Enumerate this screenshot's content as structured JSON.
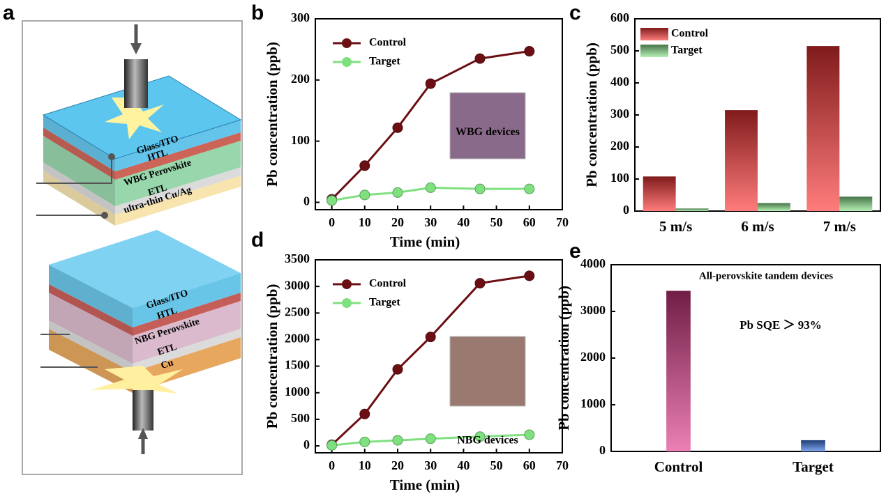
{
  "panel_labels": [
    "a",
    "b",
    "c",
    "d",
    "e"
  ],
  "diagram": {
    "top_layers": [
      "Glass/ITO",
      "HTL",
      "WBG Perovskite",
      "ETL",
      "ultra-thin Cu/Ag"
    ],
    "bottom_layers": [
      "Glass/ITO",
      "HTL",
      "NBG Perovskite",
      "ETL",
      "Cu"
    ]
  },
  "chart_data": [
    {
      "type": "line",
      "xlabel": "Time (min)",
      "ylabel": "Pb concentration (ppb)",
      "x": [
        0,
        10,
        20,
        30,
        45,
        60
      ],
      "series": [
        {
          "name": "Control",
          "color": "#6b0f14",
          "values": [
            5,
            60,
            122,
            194,
            235,
            247
          ]
        },
        {
          "name": "Target",
          "color": "#7fe07f",
          "values": [
            3,
            12,
            16,
            24,
            22,
            22
          ]
        }
      ],
      "xlim": [
        -5,
        70
      ],
      "xticks": [
        0,
        10,
        20,
        30,
        40,
        50,
        60,
        70
      ],
      "ylim": [
        -12,
        300
      ],
      "yticks": [
        0,
        100,
        200,
        300
      ],
      "annotation": "WBG devices",
      "annotation_color": "#1f7ac8",
      "legend": "top-left"
    },
    {
      "type": "bar",
      "ylabel": "Pb concentration (ppb)",
      "categories": [
        "5 m/s",
        "6 m/s",
        "7 m/s"
      ],
      "series": [
        {
          "name": "Control",
          "color": "#ff3535",
          "values": [
            108,
            315,
            515
          ]
        },
        {
          "name": "Target",
          "color": "#8ee88e",
          "values": [
            8,
            25,
            45
          ]
        }
      ],
      "ylim": [
        0,
        600
      ],
      "yticks": [
        0,
        100,
        200,
        300,
        400,
        500,
        600
      ],
      "legend": "top-left"
    },
    {
      "type": "line",
      "xlabel": "Time (min)",
      "ylabel": "Pb concentration (ppb)",
      "x": [
        0,
        10,
        20,
        30,
        45,
        60
      ],
      "series": [
        {
          "name": "Control",
          "color": "#6b0f14",
          "values": [
            20,
            600,
            1440,
            2050,
            3060,
            3200
          ]
        },
        {
          "name": "Target",
          "color": "#7fe07f",
          "values": [
            10,
            75,
            105,
            135,
            175,
            210
          ]
        }
      ],
      "xlim": [
        -5,
        70
      ],
      "xticks": [
        0,
        10,
        20,
        30,
        40,
        50,
        60,
        70
      ],
      "ylim": [
        -130,
        3500
      ],
      "yticks": [
        0,
        500,
        1000,
        1500,
        2000,
        2500,
        3000,
        3500
      ],
      "annotation": "NBG devices",
      "annotation_color": "#1f7ac8",
      "legend": "top-left"
    },
    {
      "type": "bar",
      "ylabel": "Pb concentration (ppb)",
      "categories": [
        "Control",
        "Target"
      ],
      "values": [
        3440,
        240
      ],
      "colors": [
        "#e03c8c",
        "#3c78e6"
      ],
      "ylim": [
        0,
        4000
      ],
      "yticks": [
        0,
        1000,
        2000,
        3000,
        4000
      ],
      "annotations": [
        {
          "text": "All-perovskite tandem devices",
          "color": "#1f7ac8"
        },
        {
          "text": "Pb SQE ＞ 93%",
          "color": "#e31a1a"
        }
      ]
    }
  ]
}
